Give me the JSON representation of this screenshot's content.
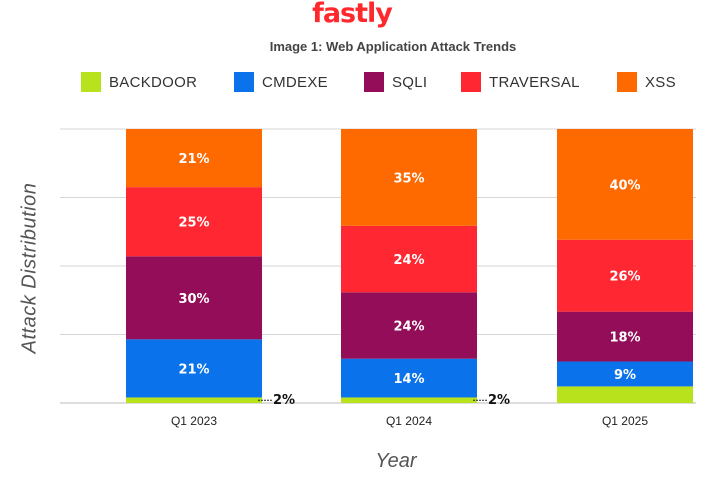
{
  "brand": {
    "logo_text": "fastly",
    "color": "#ff282d"
  },
  "chart_data": {
    "type": "bar",
    "stacked": true,
    "title": "Image 1: Web Application Attack Trends",
    "xlabel": "Year",
    "ylabel": "Attack Distribution",
    "categories": [
      "Q1 2023",
      "Q1 2024",
      "Q1 2025"
    ],
    "series": [
      {
        "name": "BACKDOOR",
        "color": "#b8e21b",
        "values": [
          2,
          2,
          6
        ],
        "labels": [
          "2%",
          "2%",
          ""
        ]
      },
      {
        "name": "CMDEXE",
        "color": "#0a73eb",
        "values": [
          21,
          14,
          9
        ],
        "labels": [
          "21%",
          "14%",
          "9%"
        ]
      },
      {
        "name": "SQLI",
        "color": "#930d58",
        "values": [
          30,
          24,
          18
        ],
        "labels": [
          "30%",
          "24%",
          "18%"
        ]
      },
      {
        "name": "TRAVERSAL",
        "color": "#ff2832",
        "values": [
          25,
          24,
          26
        ],
        "labels": [
          "25%",
          "24%",
          "26%"
        ]
      },
      {
        "name": "XSS",
        "color": "#ff6a00",
        "values": [
          21,
          35,
          40
        ],
        "labels": [
          "21%",
          "35%",
          "40%"
        ]
      }
    ],
    "ylim": [
      0,
      100
    ],
    "grid": true,
    "legend_position": "top"
  }
}
